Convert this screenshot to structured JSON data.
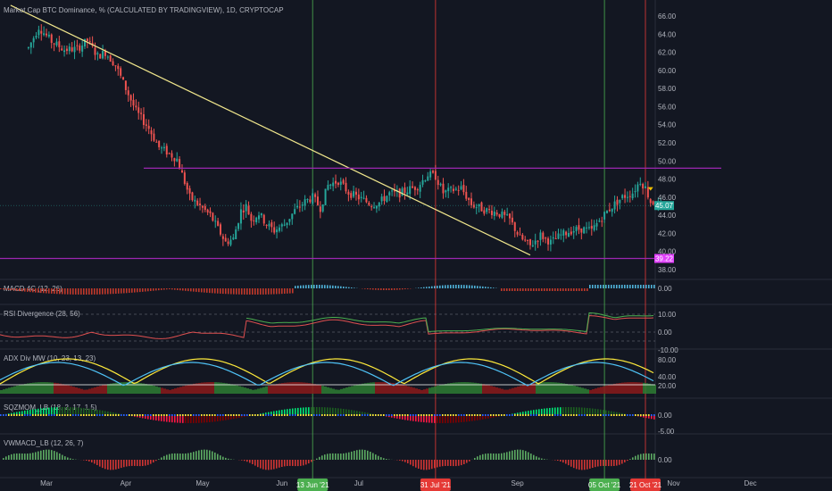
{
  "header": {
    "symbol_title": "Market Cap BTC Dominance, % (CALCULATED BY TRADINGVIEW), 1D, CRYPTOCAP"
  },
  "colors": {
    "background": "#131722",
    "up": "#26a69a",
    "down": "#ef5350",
    "trendline": "#f0e68c",
    "horizontal_line": "#9c27b0",
    "vline_green": "#4caf50",
    "vline_red": "#e53935",
    "price_tag": "#26a69a",
    "support_tag": "#e040fb"
  },
  "chart_data": [
    {
      "type": "candlestick",
      "title": "Market Cap BTC Dominance, % (CALCULATED BY TRADINGVIEW), 1D, CRYPTOCAP",
      "x_tick_labels": [
        "Mar",
        "Apr",
        "May",
        "Jun",
        "Jul",
        "Sep",
        "Nov",
        "Dec"
      ],
      "x_date_markers": [
        "13 Jun '21",
        "31 Jul '21",
        "05 Oct '21",
        "21 Oct '21"
      ],
      "y_tick_labels": [
        "66.00",
        "64.00",
        "62.00",
        "60.00",
        "58.00",
        "56.00",
        "54.00",
        "52.00",
        "50.00",
        "48.00",
        "46.00",
        "44.00",
        "42.00",
        "40.00",
        "38.00"
      ],
      "ylim": [
        37,
        67
      ],
      "last_price": "45.07",
      "support_level": "39.22",
      "resistance_level": 49.2,
      "close_path": [
        [
          "2021-02-22",
          62.5
        ],
        [
          "2021-02-26",
          64.8
        ],
        [
          "2021-03-03",
          63.2
        ],
        [
          "2021-03-08",
          62.3
        ],
        [
          "2021-03-13",
          62.4
        ],
        [
          "2021-03-17",
          63.3
        ],
        [
          "2021-03-21",
          61.6
        ],
        [
          "2021-03-24",
          62.0
        ],
        [
          "2021-03-28",
          60.6
        ],
        [
          "2021-04-01",
          58.0
        ],
        [
          "2021-04-05",
          55.5
        ],
        [
          "2021-04-10",
          53.6
        ],
        [
          "2021-04-14",
          51.5
        ],
        [
          "2021-04-17",
          51.0
        ],
        [
          "2021-04-21",
          50.2
        ],
        [
          "2021-04-23",
          48.5
        ],
        [
          "2021-04-26",
          46.0
        ],
        [
          "2021-04-30",
          45.0
        ],
        [
          "2021-05-04",
          44.0
        ],
        [
          "2021-05-07",
          42.5
        ],
        [
          "2021-05-10",
          41.0
        ],
        [
          "2021-05-13",
          41.4
        ],
        [
          "2021-05-16",
          44.5
        ],
        [
          "2021-05-18",
          45.0
        ],
        [
          "2021-05-20",
          43.5
        ],
        [
          "2021-05-23",
          44.2
        ],
        [
          "2021-05-26",
          43.0
        ],
        [
          "2021-05-29",
          42.3
        ],
        [
          "2021-06-02",
          43.0
        ],
        [
          "2021-06-06",
          44.5
        ],
        [
          "2021-06-10",
          45.5
        ],
        [
          "2021-06-13",
          46.0
        ],
        [
          "2021-06-16",
          44.8
        ],
        [
          "2021-06-19",
          47.3
        ],
        [
          "2021-06-23",
          47.8
        ],
        [
          "2021-06-27",
          46.5
        ],
        [
          "2021-07-02",
          45.8
        ],
        [
          "2021-07-06",
          45.2
        ],
        [
          "2021-07-09",
          45.4
        ],
        [
          "2021-07-13",
          46.4
        ],
        [
          "2021-07-17",
          46.4
        ],
        [
          "2021-07-21",
          46.9
        ],
        [
          "2021-07-24",
          47.2
        ],
        [
          "2021-07-28",
          48.5
        ],
        [
          "2021-07-31",
          48.3
        ],
        [
          "2021-08-03",
          46.5
        ],
        [
          "2021-08-07",
          46.8
        ],
        [
          "2021-08-10",
          47.0
        ],
        [
          "2021-08-14",
          45.2
        ],
        [
          "2021-08-19",
          44.6
        ],
        [
          "2021-08-24",
          44.3
        ],
        [
          "2021-08-29",
          43.5
        ],
        [
          "2021-09-02",
          41.5
        ],
        [
          "2021-09-06",
          40.6
        ],
        [
          "2021-09-10",
          41.8
        ],
        [
          "2021-09-14",
          41.0
        ],
        [
          "2021-09-18",
          41.8
        ],
        [
          "2021-09-22",
          42.3
        ],
        [
          "2021-09-26",
          42.5
        ],
        [
          "2021-09-30",
          42.3
        ],
        [
          "2021-10-04",
          43.8
        ],
        [
          "2021-10-08",
          45.0
        ],
        [
          "2021-10-12",
          46.0
        ],
        [
          "2021-10-16",
          46.5
        ],
        [
          "2021-10-19",
          47.8
        ],
        [
          "2021-10-21",
          47.0
        ],
        [
          "2021-10-23",
          45.5
        ],
        [
          "2021-10-27",
          45.1
        ]
      ]
    },
    {
      "type": "histogram",
      "pane": "MACD 4C (12, 26)",
      "title": "MACD 4C (12, 26)",
      "y_tick_labels": [
        "0.00"
      ]
    },
    {
      "type": "line",
      "pane": "RSI Divergence (28, 56)",
      "title": "RSI Divergence (28, 56)",
      "y_tick_labels": [
        "10.00",
        "0.00",
        "-10.00"
      ]
    },
    {
      "type": "line",
      "pane": "ADX Div MW (10, 23, 13, 23)",
      "title": "ADX Div MW (10, 23, 13, 23)",
      "y_tick_labels": [
        "80.00",
        "40.00",
        "20.00"
      ]
    },
    {
      "type": "histogram",
      "pane": "SQZMOM_LB (18, 2, 17, 1.5)",
      "title": "SQZMOM_LB (18, 2, 17, 1.5)",
      "y_tick_labels": [
        "0.00",
        "-5.00"
      ]
    },
    {
      "type": "histogram",
      "pane": "VWMACD_LB (12, 26, 7)",
      "title": "VWMACD_LB (12, 26, 7)",
      "y_tick_labels": [
        "0.00"
      ]
    }
  ]
}
